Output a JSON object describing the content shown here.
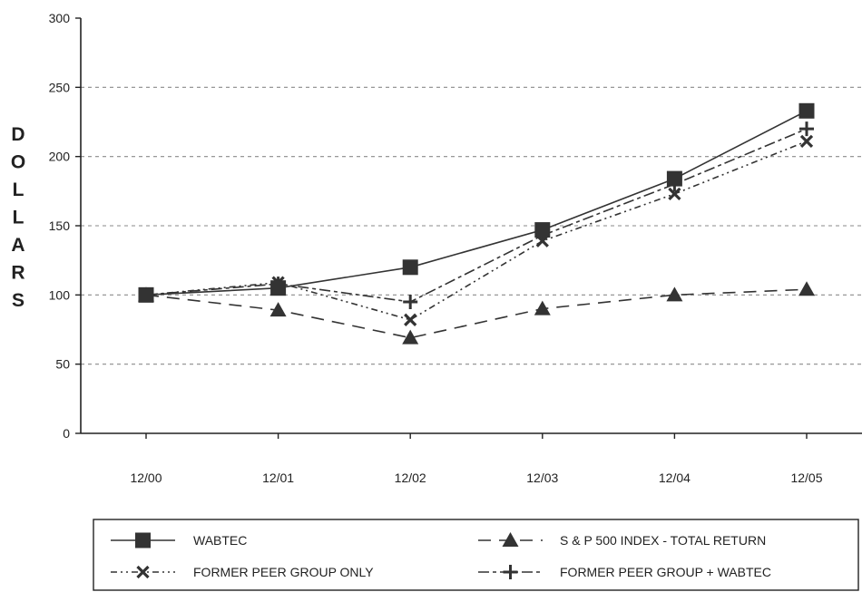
{
  "chart_data": {
    "type": "line",
    "title": "",
    "xlabel": "",
    "ylabel": "DOLLARS",
    "categories": [
      "12/00",
      "12/01",
      "12/02",
      "12/03",
      "12/04",
      "12/05"
    ],
    "ylim": [
      0,
      300
    ],
    "yticks": [
      0,
      50,
      100,
      150,
      200,
      250,
      300
    ],
    "grid": "horizontal-dashed",
    "legend_position": "bottom",
    "series": [
      {
        "name": "WABTEC",
        "values": [
          100,
          105,
          120,
          147,
          184,
          233
        ],
        "marker": "square",
        "dash": "solid"
      },
      {
        "name": "S & P 500 INDEX - TOTAL RETURN",
        "values": [
          100,
          89,
          69,
          90,
          100,
          104
        ],
        "marker": "triangle",
        "dash": "long-dash"
      },
      {
        "name": "FORMER PEER GROUP ONLY",
        "values": [
          100,
          109,
          82,
          139,
          173,
          211
        ],
        "marker": "x",
        "dash": "dash-dot-dot"
      },
      {
        "name": "FORMER PEER GROUP + WABTEC",
        "values": [
          100,
          108,
          95,
          143,
          180,
          220
        ],
        "marker": "plus",
        "dash": "long-short"
      }
    ]
  }
}
